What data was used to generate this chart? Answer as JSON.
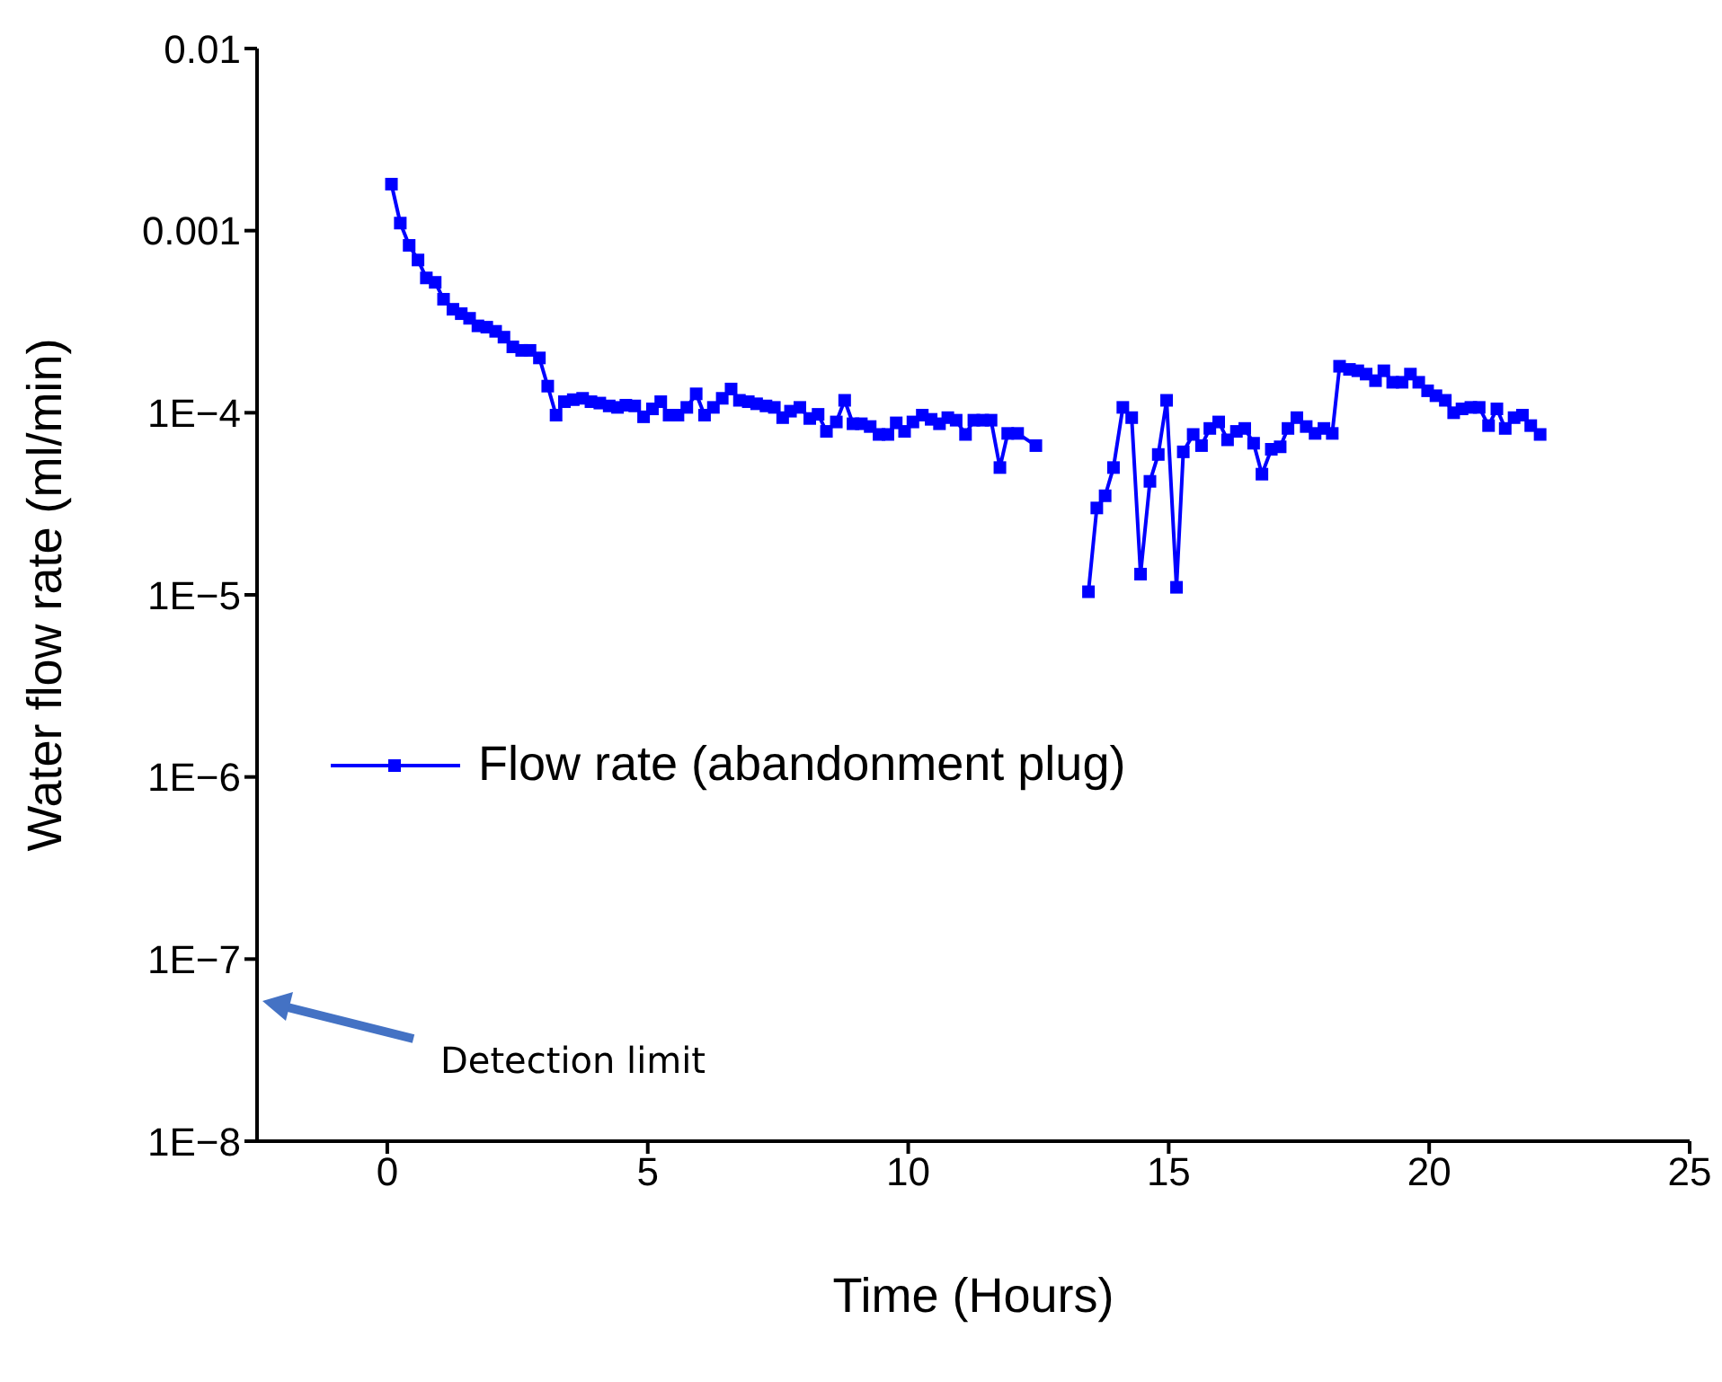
{
  "chart_data": {
    "type": "line",
    "xlabel": "Time (Hours)",
    "ylabel": "Water flow rate (ml/min)",
    "log": "y",
    "marker": "square",
    "legend": "left",
    "grid": false,
    "xlim": [
      -2.5,
      25
    ],
    "xticks": [
      0,
      5,
      10,
      15,
      20,
      25
    ],
    "ylim": [
      1e-08,
      0.01
    ],
    "yticks": [
      {
        "value": 1e-08,
        "label": "1E−8"
      },
      {
        "value": 1e-07,
        "label": "1E−7"
      },
      {
        "value": 1e-06,
        "label": "1E−6"
      },
      {
        "value": 1e-05,
        "label": "1E−5"
      },
      {
        "value": 0.0001,
        "label": "1E−4"
      },
      0.001,
      0.01
    ],
    "x": [
      0.08,
      0.25,
      0.42,
      0.59,
      0.75,
      0.92,
      1.08,
      1.26,
      1.42,
      1.58,
      1.74,
      1.91,
      2.08,
      2.24,
      2.41,
      2.58,
      2.74,
      2.92,
      3.08,
      3.24,
      3.4,
      3.57,
      3.75,
      3.91,
      4.08,
      4.26,
      4.42,
      4.58,
      4.75,
      4.92,
      5.09,
      5.25,
      5.41,
      5.58,
      5.75,
      5.93,
      6.09,
      6.26,
      6.43,
      6.6,
      6.76,
      6.93,
      7.09,
      7.27,
      7.43,
      7.59,
      7.74,
      7.92,
      8.11,
      8.27,
      8.43,
      8.62,
      8.78,
      8.94,
      9.1,
      9.27,
      9.44,
      9.61,
      9.77,
      9.93,
      10.09,
      10.27,
      10.44,
      10.6,
      10.76,
      10.92,
      11.1,
      11.26,
      11.43,
      11.59,
      11.76,
      11.91,
      12.1,
      12.45,
      12.95,
      13.46,
      13.62,
      13.78,
      13.94,
      14.12,
      14.29,
      14.46,
      14.64,
      14.8,
      14.96,
      15.15,
      15.28,
      15.47,
      15.63,
      15.79,
      15.96,
      16.13,
      16.3,
      16.46,
      16.63,
      16.79,
      16.97,
      17.14,
      17.29,
      17.46,
      17.64,
      17.81,
      17.98,
      18.14,
      18.28,
      18.47,
      18.63,
      18.79,
      18.97,
      19.13,
      19.3,
      19.48,
      19.64,
      19.8,
      19.97,
      20.13,
      20.31,
      20.47,
      20.63,
      20.8,
      20.96,
      21.14,
      21.3,
      21.46,
      21.63,
      21.79,
      21.95,
      22.13
    ],
    "series": [
      {
        "name": "Flow rate (abandonment plug)",
        "color": "#0000ff",
        "values": [
          0.0018,
          0.0011,
          0.00083,
          0.00069,
          0.00055,
          0.00052,
          0.00042,
          0.00037,
          0.00035,
          0.00033,
          0.0003,
          0.000295,
          0.00028,
          0.00026,
          0.00023,
          0.00022,
          0.00022,
          0.0002,
          0.00014,
          9.7e-05,
          0.000115,
          0.000118,
          0.00012,
          0.000115,
          0.000113,
          0.000109,
          0.000107,
          0.00011,
          0.000109,
          9.5e-05,
          0.000105,
          0.000115,
          9.7e-05,
          9.7e-05,
          0.000107,
          0.000127,
          9.7e-05,
          0.000107,
          0.00012,
          0.000135,
          0.000117,
          0.000115,
          0.000112,
          0.000109,
          0.000107,
          9.4e-05,
          0.000102,
          0.000107,
          9.3e-05,
          9.8e-05,
          7.9e-05,
          8.9e-05,
          0.000117,
          8.7e-05,
          8.7e-05,
          8.4e-05,
          7.6e-05,
          7.6e-05,
          8.8e-05,
          7.9e-05,
          8.9e-05,
          9.7e-05,
          9.2e-05,
          8.7e-05,
          9.4e-05,
          9.1e-05,
          7.6e-05,
          9.1e-05,
          9.1e-05,
          9.1e-05,
          5e-05,
          7.7e-05,
          7.7e-05,
          6.6e-05,
          null,
          1.04e-05,
          3e-05,
          3.5e-05,
          5e-05,
          0.000107,
          9.4e-05,
          1.3e-05,
          4.2e-05,
          5.9e-05,
          0.000117,
          1.1e-05,
          6.1e-05,
          7.6e-05,
          6.6e-05,
          8.2e-05,
          8.9e-05,
          7.1e-05,
          7.9e-05,
          8.2e-05,
          6.8e-05,
          4.6e-05,
          6.3e-05,
          6.5e-05,
          8.2e-05,
          9.4e-05,
          8.4e-05,
          7.7e-05,
          8.2e-05,
          7.7e-05,
          0.00018,
          0.000173,
          0.00017,
          0.000163,
          0.00015,
          0.00017,
          0.000147,
          0.000147,
          0.000163,
          0.000147,
          0.000132,
          0.000124,
          0.000117,
          0.0001,
          0.000105,
          0.000107,
          0.000107,
          8.5e-05,
          0.000105,
          8.2e-05,
          9.4e-05,
          9.7e-05,
          8.5e-05,
          7.6e-05
        ]
      }
    ],
    "annotations": [
      "Detection limit"
    ]
  }
}
